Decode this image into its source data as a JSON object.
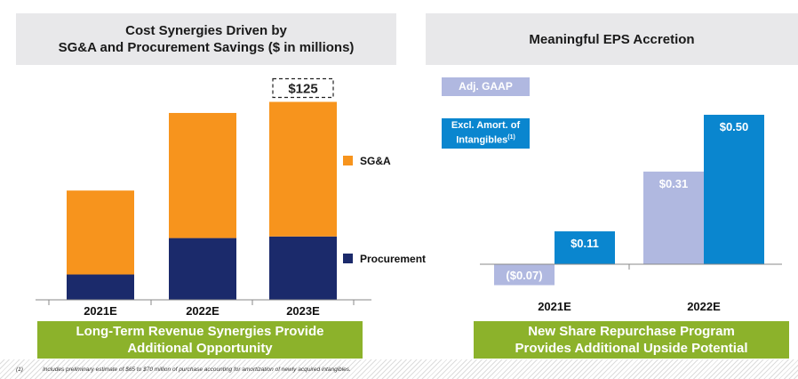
{
  "left_panel": {
    "title_line1": "Cost Synergies Driven by",
    "title_line2": "SG&A and Procurement Savings ($ in millions)",
    "total_callout": "$125",
    "banner_line1": "Long-Term Revenue Synergies Provide",
    "banner_line2": "Additional Opportunity"
  },
  "right_panel": {
    "title": "Meaningful EPS Accretion",
    "legend_gaap": "Adj. GAAP",
    "legend_excl_line1": "Excl. Amort. of",
    "legend_excl_line2": "Intangibles",
    "legend_excl_sup": "(1)",
    "banner_line1": "New Share Repurchase Program",
    "banner_line2": "Provides Additional Upside Potential"
  },
  "footnote": {
    "number": "(1)",
    "text": "Includes preliminary estimate of $65 to $70 million of purchase accounting for amortization of newly acquired intangibles."
  },
  "colors": {
    "sga": "#f7941d",
    "procurement": "#1b2a6b",
    "gaap": "#b0b8e0",
    "excl": "#0a86cf",
    "banner": "#8cb22b"
  },
  "chart_data": [
    {
      "type": "bar",
      "stacked": true,
      "categories": [
        "2021E",
        "2022E",
        "2023E"
      ],
      "series": [
        {
          "name": "Procurement",
          "values": [
            16,
            39,
            40
          ],
          "color": "#1b2a6b"
        },
        {
          "name": "SG&A",
          "values": [
            53,
            79,
            85
          ],
          "color": "#f7941d"
        }
      ],
      "annotations": [
        {
          "category": "2023E",
          "label": "$125"
        }
      ],
      "legend": "right",
      "grid": false
    },
    {
      "type": "bar",
      "categories": [
        "2021E",
        "2022E"
      ],
      "series": [
        {
          "name": "Adj. GAAP",
          "values": [
            -0.07,
            0.31
          ],
          "labels": [
            "($0.07)",
            "$0.31"
          ],
          "color": "#b0b8e0"
        },
        {
          "name": "Excl. Amort. of Intangibles(1)",
          "values": [
            0.11,
            0.5
          ],
          "labels": [
            "$0.11",
            "$0.50"
          ],
          "color": "#0a86cf"
        }
      ],
      "legend": "top-left",
      "grid": false
    }
  ]
}
